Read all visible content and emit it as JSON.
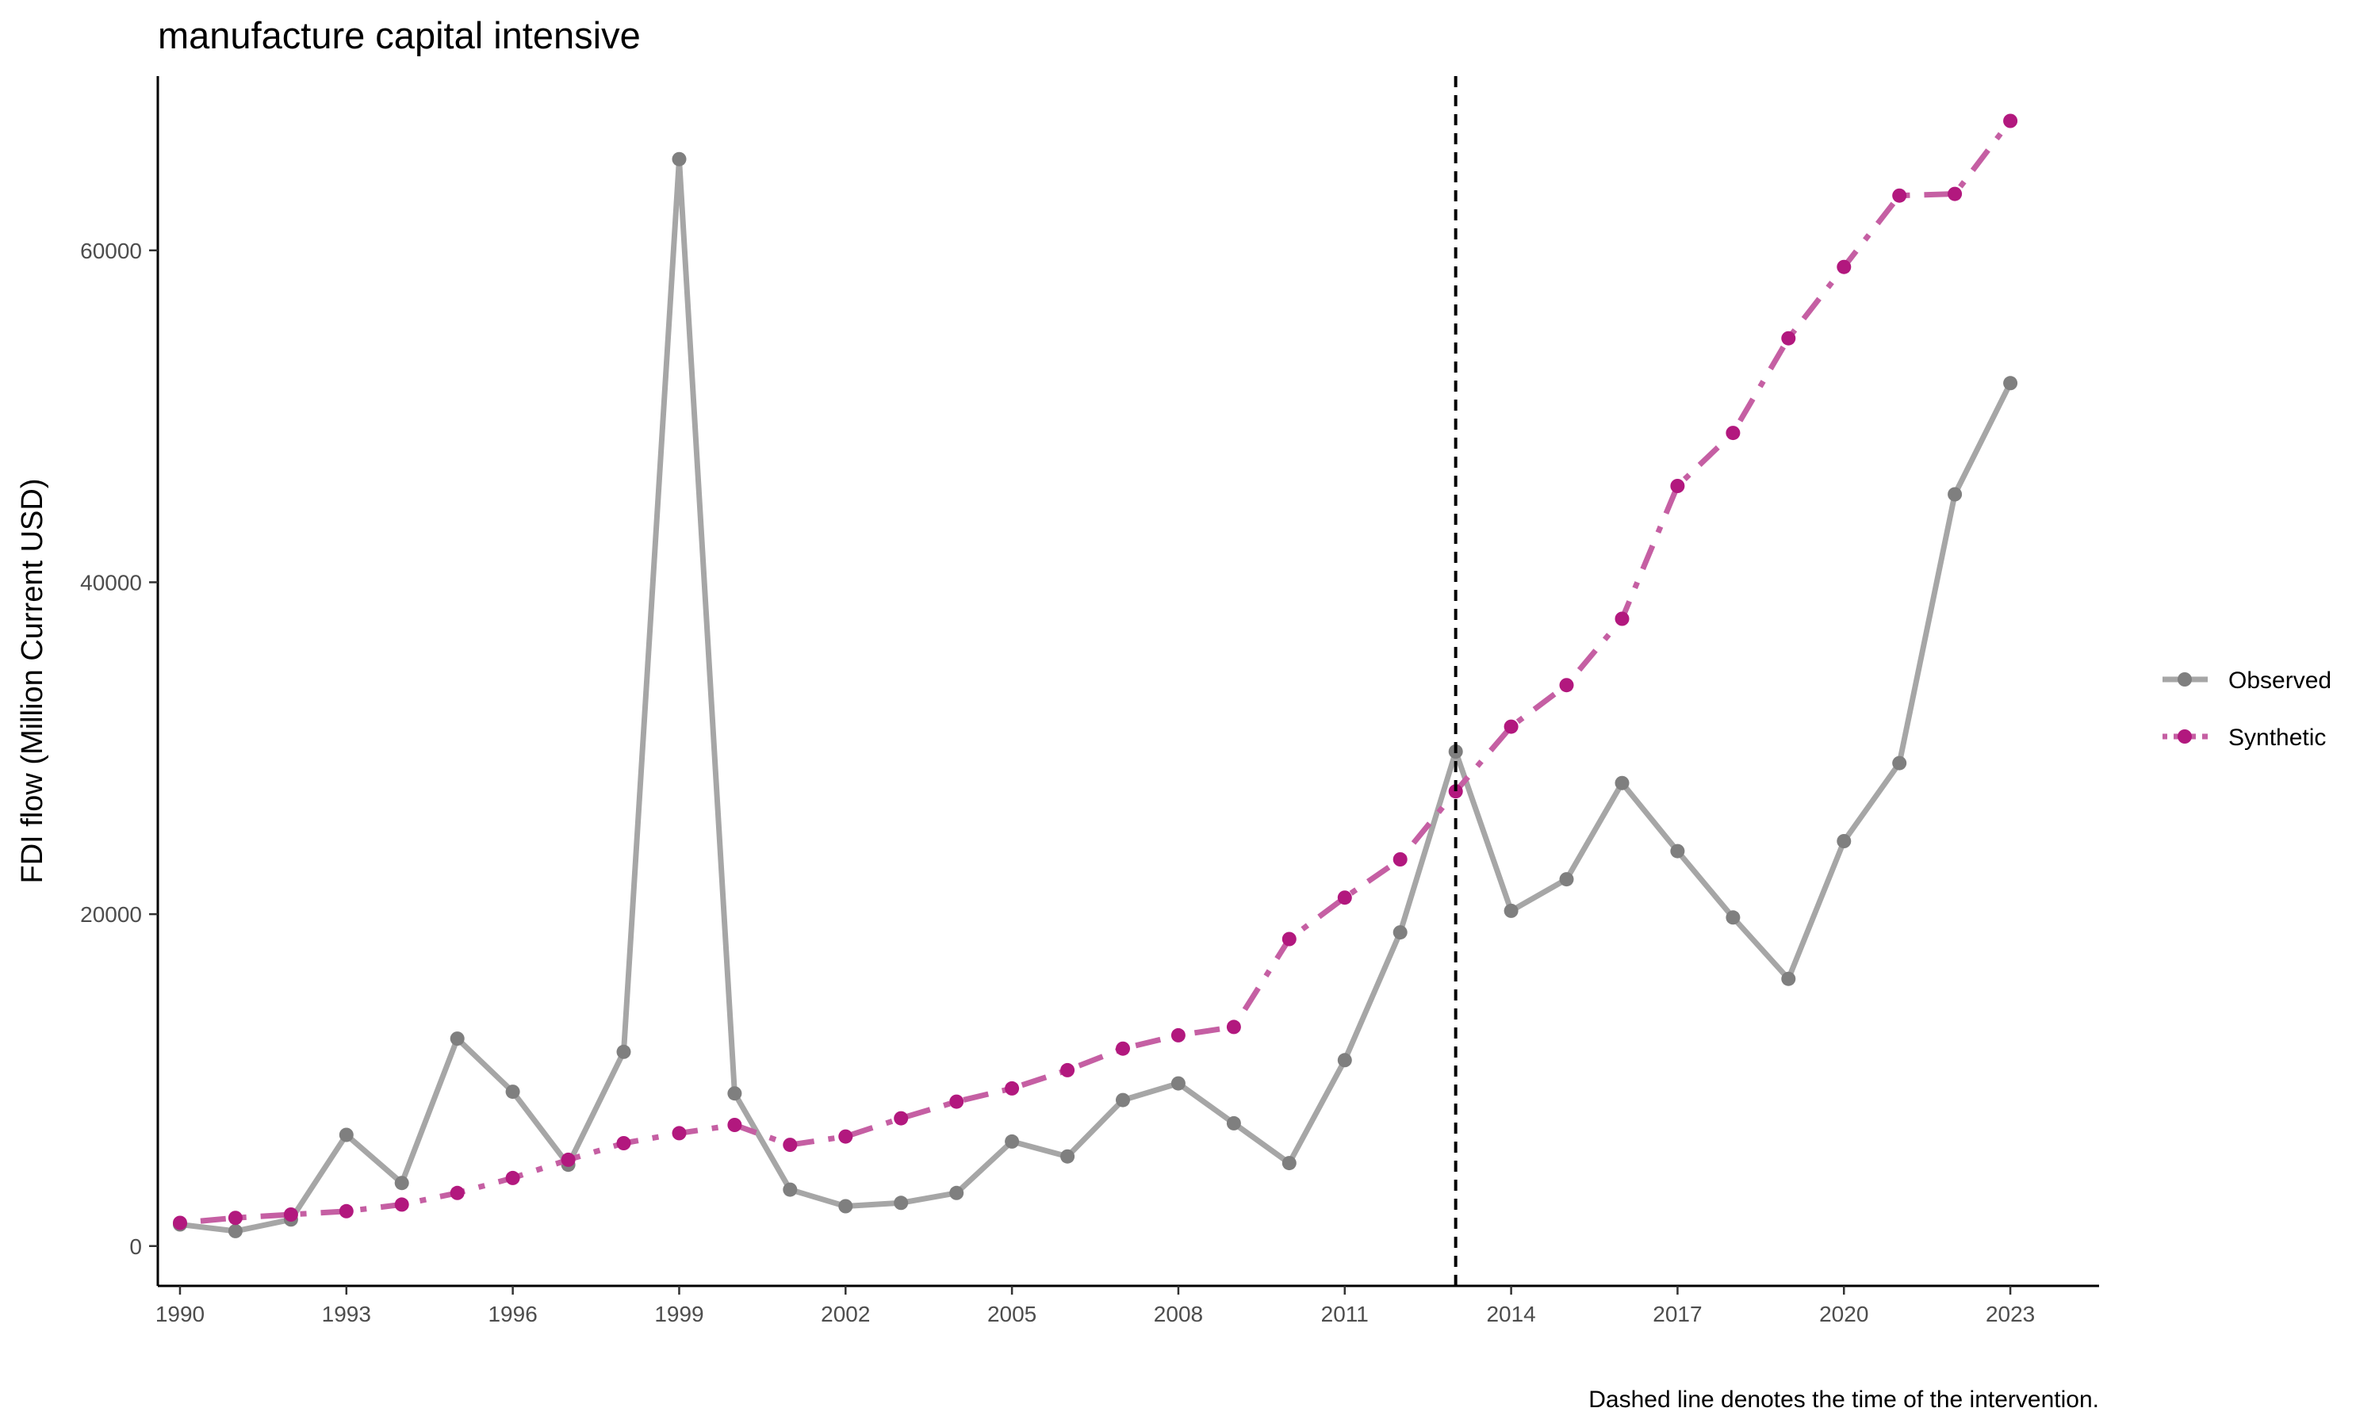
{
  "chart_data": {
    "type": "line",
    "title": "manufacture capital intensive",
    "xlabel": "",
    "ylabel": "FDI flow (Million Current USD)",
    "caption": "Dashed line denotes the time of the intervention.",
    "x": [
      1990,
      1991,
      1992,
      1993,
      1994,
      1995,
      1996,
      1997,
      1998,
      1999,
      2000,
      2001,
      2002,
      2003,
      2004,
      2005,
      2006,
      2007,
      2008,
      2009,
      2010,
      2011,
      2012,
      2013,
      2014,
      2015,
      2016,
      2017,
      2018,
      2019,
      2020,
      2021,
      2022,
      2023
    ],
    "x_ticks": [
      1990,
      1993,
      1996,
      1999,
      2002,
      2005,
      2008,
      2011,
      2014,
      2017,
      2020,
      2023
    ],
    "y_ticks": [
      0,
      20000,
      40000,
      60000
    ],
    "xlim": [
      1989.6,
      2024.6
    ],
    "ylim": [
      -2400,
      70500
    ],
    "intervention_year": 2013,
    "grid": false,
    "legend_position": "right",
    "series": [
      {
        "name": "Observed",
        "color": "#7f7f7f",
        "line_color": "#a6a6a6",
        "line_style": "solid",
        "values": [
          1300,
          900,
          1600,
          6700,
          3800,
          12500,
          9300,
          4900,
          11700,
          65500,
          9200,
          3400,
          2400,
          2600,
          3200,
          6300,
          5400,
          8800,
          9800,
          7400,
          5000,
          11200,
          18900,
          29800,
          20200,
          22100,
          27900,
          23800,
          19800,
          16100,
          24400,
          29100,
          45300,
          52000
        ]
      },
      {
        "name": "Synthetic",
        "color": "#b2187e",
        "line_color": "#c55fa3",
        "line_style": "dotdash",
        "values": [
          1400,
          1700,
          1900,
          2100,
          2500,
          3200,
          4100,
          5200,
          6200,
          6800,
          7300,
          6100,
          6600,
          7700,
          8700,
          9500,
          10600,
          11900,
          12700,
          13200,
          18500,
          21000,
          23300,
          27400,
          31300,
          33800,
          37800,
          45800,
          49000,
          54700,
          59000,
          63300,
          63400,
          67800
        ]
      }
    ]
  }
}
